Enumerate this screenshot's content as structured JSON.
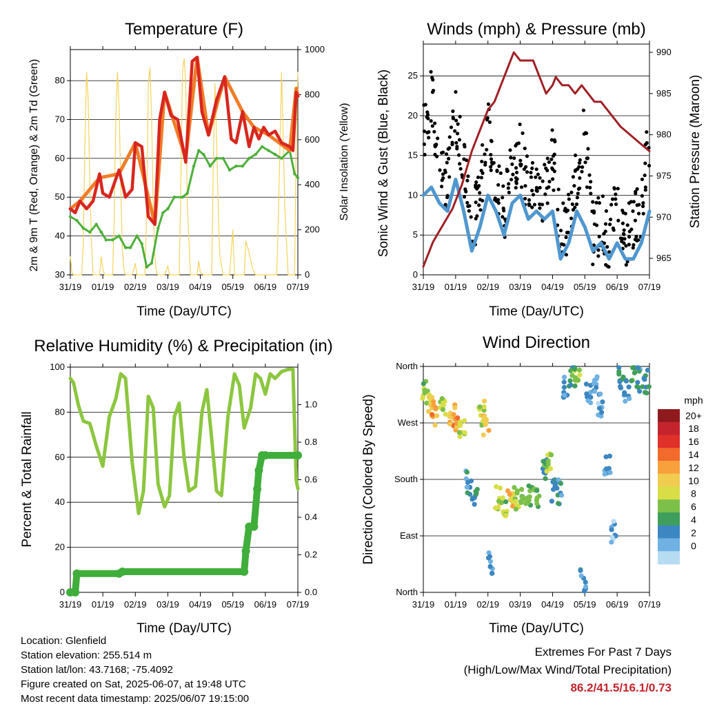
{
  "colors": {
    "temp_2m": "#d8261e",
    "temp_9m": "#f07d28",
    "dewpoint": "#4caf3a",
    "insolation": "#f6d35a",
    "wind": "#4f97d0",
    "gust": "#000000",
    "pressure": "#a01f24",
    "humidity": "#8cc63f",
    "precip": "#3fae3a",
    "extremes": "#c4242c"
  },
  "x_ticks": [
    "31/19",
    "01/19",
    "02/19",
    "03/19",
    "04/19",
    "05/19",
    "06/19",
    "07/19"
  ],
  "x_label": "Time (Day/UTC)",
  "panels": {
    "temperature": {
      "title": "Temperature (F)",
      "ylabel_left": "2m & 9m T (Red, Orange) & 2m Td (Green)",
      "ylabel_right": "Solar Insolation (Yellow)",
      "left_ticks": [
        "30",
        "40",
        "50",
        "60",
        "70",
        "80"
      ],
      "right_ticks": [
        "0",
        "200",
        "400",
        "600",
        "800",
        "1000"
      ]
    },
    "winds": {
      "title": "Winds (mph) & Pressure (mb)",
      "ylabel_left": "Sonic Wind & Gust (Blue, Black)",
      "ylabel_right": "Station Pressure (Maroon)",
      "left_ticks": [
        "0",
        "5",
        "10",
        "15",
        "20",
        "25"
      ],
      "right_ticks": [
        "965",
        "970",
        "975",
        "980",
        "985",
        "990"
      ]
    },
    "humidity": {
      "title": "Relative Humidity (%) & Precipitation (in)",
      "ylabel_left": "Percent & Total Rainfall",
      "left_ticks": [
        "0",
        "20",
        "40",
        "60",
        "80",
        "100"
      ],
      "right_ticks": [
        "0.0",
        "0.2",
        "0.4",
        "0.6",
        "0.8",
        "1.0"
      ]
    },
    "direction": {
      "title": "Wind Direction",
      "ylabel_left": "Direction (Colored By Speed)",
      "left_ticks": [
        "North",
        "East",
        "South",
        "West",
        "North"
      ],
      "legend_title": "mph",
      "legend_labels": [
        "20+",
        "18",
        "16",
        "14",
        "12",
        "10",
        "8",
        "6",
        "4",
        "2",
        "0"
      ],
      "legend_colors": [
        "#8f1a1e",
        "#c4242c",
        "#e0302a",
        "#f26a2c",
        "#f8a03c",
        "#f0cc50",
        "#d9de46",
        "#7cc04a",
        "#3f9e5c",
        "#3c86c2",
        "#6fb1e2",
        "#b6dcf2"
      ]
    }
  },
  "chart_data": [
    {
      "type": "line",
      "title": "Temperature (F)",
      "xlabel": "Time (Day/UTC)",
      "ylabel": "2m & 9m T (Red, Orange) & 2m Td (Green)",
      "y2label": "Solar Insolation (Yellow)",
      "xlim": [
        0,
        7
      ],
      "ylim": [
        30,
        88
      ],
      "y2lim": [
        0,
        1000
      ],
      "categories": [
        "31/19",
        "01/19",
        "02/19",
        "03/19",
        "04/19",
        "05/19",
        "06/19",
        "07/19"
      ],
      "series": [
        {
          "name": "2m T",
          "x": [
            0,
            0.15,
            0.3,
            0.5,
            0.7,
            0.9,
            1.0,
            1.2,
            1.5,
            1.7,
            1.9,
            2.0,
            2.2,
            2.4,
            2.6,
            2.75,
            2.9,
            3.1,
            3.3,
            3.55,
            3.75,
            3.9,
            4.05,
            4.25,
            4.5,
            4.75,
            4.95,
            5.1,
            5.3,
            5.5,
            5.65,
            5.8,
            5.95,
            6.1,
            6.3,
            6.5,
            6.75,
            6.85,
            6.95,
            7.0
          ],
          "y": [
            47,
            46,
            49,
            47,
            49,
            56,
            51,
            50,
            57,
            50,
            52,
            64,
            63,
            45,
            43,
            70,
            77,
            71,
            70,
            59,
            85,
            86,
            72,
            66,
            75,
            81,
            65,
            64,
            72,
            63,
            68,
            65,
            68,
            66,
            67,
            64,
            63,
            62,
            77,
            76
          ]
        },
        {
          "name": "9m T",
          "x": [
            0,
            0.3,
            0.9,
            1.5,
            2.0,
            2.6,
            2.9,
            3.55,
            3.9,
            4.25,
            4.75,
            5.3,
            5.65,
            6.1,
            6.75,
            6.95,
            7.0
          ],
          "y": [
            47,
            49,
            55,
            56,
            64,
            43,
            77,
            60,
            86,
            66,
            81,
            72,
            68,
            66,
            62,
            78,
            76
          ]
        },
        {
          "name": "2m Td",
          "x": [
            0,
            0.2,
            0.4,
            0.6,
            0.8,
            0.95,
            1.1,
            1.3,
            1.5,
            1.7,
            1.85,
            2.05,
            2.2,
            2.35,
            2.5,
            2.7,
            2.85,
            3.0,
            3.2,
            3.45,
            3.6,
            3.8,
            3.95,
            4.1,
            4.3,
            4.5,
            4.7,
            4.9,
            5.1,
            5.3,
            5.5,
            5.7,
            5.9,
            6.1,
            6.3,
            6.5,
            6.75,
            6.9,
            7.0
          ],
          "y": [
            45,
            44,
            42,
            41,
            43,
            41,
            39,
            39,
            40,
            37,
            37,
            40,
            38,
            32,
            33,
            42,
            46,
            47,
            50,
            50,
            51,
            58,
            62,
            61,
            58,
            60,
            60,
            57,
            58,
            58,
            60,
            61,
            63,
            62,
            61,
            60,
            62,
            56,
            55
          ]
        },
        {
          "name": "Solar Insolation",
          "axis": "y2",
          "x": [
            0.0,
            0.05,
            0.1,
            0.35,
            0.4,
            0.45,
            0.5,
            0.55,
            0.6,
            0.65,
            0.7,
            0.9,
            0.95,
            1.0,
            1.05,
            1.1,
            1.3,
            1.35,
            1.4,
            1.45,
            1.5,
            1.55,
            1.6,
            1.65,
            1.7,
            1.9,
            2.0,
            2.05,
            2.1,
            2.2,
            2.3,
            2.35,
            2.4,
            2.45,
            2.5,
            2.55,
            2.6,
            2.65,
            2.7,
            2.9,
            3.0,
            3.05,
            3.1,
            3.2,
            3.35,
            3.4,
            3.45,
            3.5,
            3.55,
            3.6,
            3.7,
            3.9,
            3.95,
            4.0,
            4.1,
            4.35,
            4.4,
            4.45,
            4.5,
            4.55,
            4.6,
            4.7,
            4.9,
            5.0,
            5.05,
            5.2,
            5.35,
            5.4,
            5.5,
            5.6,
            5.7,
            5.9,
            6.0,
            6.2,
            6.35,
            6.4,
            6.5,
            6.55,
            6.6,
            6.7,
            6.9,
            6.95,
            7.0
          ],
          "y": [
            80,
            10,
            0,
            0,
            150,
            600,
            900,
            780,
            400,
            150,
            0,
            0,
            80,
            30,
            0,
            0,
            0,
            250,
            700,
            900,
            750,
            400,
            120,
            20,
            0,
            0,
            50,
            0,
            0,
            0,
            0,
            300,
            850,
            920,
            700,
            300,
            80,
            10,
            0,
            0,
            40,
            0,
            0,
            0,
            0,
            400,
            900,
            960,
            850,
            300,
            0,
            0,
            60,
            10,
            0,
            0,
            500,
            850,
            600,
            300,
            80,
            0,
            0,
            200,
            0,
            0,
            0,
            150,
            100,
            30,
            0,
            0,
            0,
            0,
            0,
            250,
            900,
            600,
            300,
            0,
            0,
            600,
            900
          ]
        }
      ]
    },
    {
      "type": "scatter",
      "title": "Winds (mph) & Pressure (mb)",
      "xlabel": "Time (Day/UTC)",
      "ylabel": "Sonic Wind & Gust (Blue, Black)",
      "y2label": "Station Pressure (Maroon)",
      "xlim": [
        0,
        7
      ],
      "ylim": [
        0,
        29
      ],
      "y2lim": [
        963,
        991
      ],
      "categories": [
        "31/19",
        "01/19",
        "02/19",
        "03/19",
        "04/19",
        "05/19",
        "06/19",
        "07/19"
      ],
      "series": [
        {
          "name": "Sonic Wind",
          "x": [
            0.0,
            0.25,
            0.5,
            0.75,
            1.0,
            1.25,
            1.5,
            1.75,
            2.0,
            2.25,
            2.5,
            2.75,
            3.0,
            3.25,
            3.5,
            3.75,
            4.0,
            4.25,
            4.5,
            4.75,
            5.0,
            5.25,
            5.5,
            5.75,
            6.0,
            6.25,
            6.5,
            6.75,
            7.0
          ],
          "y": [
            10,
            11,
            9,
            8,
            12,
            8,
            3,
            6,
            10,
            8,
            5,
            9,
            10,
            7,
            8,
            7,
            8,
            2,
            4,
            8,
            6,
            3,
            4,
            2,
            4,
            2,
            2,
            4,
            8
          ]
        },
        {
          "name": "Gust",
          "x": [
            0.0,
            0.25,
            0.5,
            0.75,
            1.0,
            1.25,
            1.5,
            1.75,
            2.0,
            2.25,
            2.5,
            2.75,
            3.0,
            3.25,
            3.5,
            3.75,
            4.0,
            4.25,
            4.5,
            4.75,
            5.0,
            5.25,
            5.5,
            5.75,
            6.0,
            6.25,
            6.5,
            6.75,
            7.0
          ],
          "y": [
            18,
            22,
            14,
            11,
            21,
            14,
            5,
            10,
            20,
            12,
            7,
            14,
            16,
            10,
            11,
            10,
            16,
            5,
            7,
            12,
            18,
            5,
            7,
            4,
            9,
            5,
            6,
            8,
            18
          ]
        },
        {
          "name": "Station Pressure",
          "axis": "y2",
          "x": [
            0.0,
            0.3,
            0.6,
            0.9,
            1.2,
            1.5,
            1.8,
            2.0,
            2.2,
            2.4,
            2.6,
            2.8,
            3.0,
            3.2,
            3.4,
            3.6,
            3.8,
            4.0,
            4.1,
            4.3,
            4.5,
            4.7,
            4.9,
            5.1,
            5.3,
            5.5,
            5.7,
            5.9,
            6.1,
            6.4,
            6.7,
            7.0
          ],
          "y": [
            964,
            967,
            969,
            971,
            974,
            978,
            981,
            983,
            984,
            986,
            988,
            990,
            989,
            989,
            989,
            987,
            985,
            986,
            987,
            986,
            986,
            985,
            986,
            985,
            984,
            984,
            983,
            982,
            981,
            980,
            979,
            978
          ]
        }
      ]
    },
    {
      "type": "line",
      "title": "Relative Humidity (%) & Precipitation (in)",
      "xlabel": "Time (Day/UTC)",
      "ylabel": "Percent & Total Rainfall",
      "xlim": [
        0,
        7
      ],
      "ylim": [
        0,
        100
      ],
      "y2lim": [
        0,
        1.2
      ],
      "categories": [
        "31/19",
        "01/19",
        "02/19",
        "03/19",
        "04/19",
        "05/19",
        "06/19",
        "07/19"
      ],
      "series": [
        {
          "name": "Relative Humidity",
          "x": [
            0.0,
            0.1,
            0.25,
            0.4,
            0.6,
            0.8,
            1.0,
            1.2,
            1.4,
            1.55,
            1.7,
            1.9,
            2.1,
            2.25,
            2.4,
            2.55,
            2.7,
            2.9,
            3.05,
            3.2,
            3.35,
            3.5,
            3.65,
            3.85,
            4.05,
            4.2,
            4.35,
            4.5,
            4.65,
            4.85,
            5.05,
            5.2,
            5.35,
            5.55,
            5.7,
            5.85,
            6.0,
            6.15,
            6.3,
            6.5,
            6.7,
            6.85,
            6.95,
            7.0
          ],
          "y": [
            95,
            93,
            83,
            76,
            75,
            65,
            56,
            78,
            86,
            97,
            95,
            58,
            35,
            45,
            87,
            82,
            48,
            38,
            43,
            78,
            84,
            60,
            45,
            47,
            80,
            90,
            68,
            45,
            43,
            78,
            97,
            92,
            73,
            82,
            97,
            95,
            88,
            97,
            95,
            98,
            99,
            99,
            50,
            46
          ]
        },
        {
          "name": "Total Rainfall",
          "axis": "y2",
          "x": [
            0.0,
            0.15,
            0.2,
            1.5,
            1.6,
            5.35,
            5.4,
            5.5,
            5.65,
            5.75,
            5.8,
            5.9,
            6.0,
            7.0
          ],
          "y": [
            0.0,
            0.0,
            0.1,
            0.1,
            0.11,
            0.11,
            0.22,
            0.35,
            0.35,
            0.55,
            0.65,
            0.73,
            0.73,
            0.73
          ]
        }
      ]
    },
    {
      "type": "scatter",
      "title": "Wind Direction",
      "xlabel": "Time (Day/UTC)",
      "ylabel": "Direction (Colored By Speed)",
      "xlim": [
        0,
        7
      ],
      "ylim": [
        0,
        360
      ],
      "categories": [
        "31/19",
        "01/19",
        "02/19",
        "03/19",
        "04/19",
        "05/19",
        "06/19",
        "07/19"
      ],
      "series": [
        {
          "name": "Wind Direction",
          "x": [
            0.05,
            0.2,
            0.35,
            0.6,
            0.9,
            1.0,
            1.2,
            1.4,
            1.6,
            1.8,
            1.95,
            2.1,
            2.3,
            2.5,
            2.7,
            2.9,
            3.1,
            3.3,
            3.5,
            3.75,
            3.9,
            4.05,
            4.2,
            4.4,
            4.6,
            4.75,
            4.95,
            5.1,
            5.3,
            5.5,
            5.7,
            5.9,
            6.1,
            6.3,
            6.5,
            6.7,
            6.9
          ],
          "y": [
            320,
            300,
            285,
            300,
            285,
            270,
            265,
            175,
            160,
            285,
            270,
            50,
            150,
            140,
            145,
            150,
            145,
            150,
            150,
            195,
            205,
            165,
            160,
            330,
            345,
            340,
            20,
            320,
            330,
            300,
            200,
            100,
            340,
            320,
            345,
            340,
            335
          ],
          "speed": [
            8,
            11,
            14,
            9,
            12,
            14,
            9,
            4,
            5,
            10,
            13,
            2,
            10,
            8,
            12,
            9,
            7,
            8,
            7,
            6,
            9,
            5,
            4,
            3,
            6,
            8,
            4,
            3,
            2,
            2,
            3,
            2,
            5,
            4,
            6,
            4,
            5
          ]
        }
      ]
    }
  ],
  "footer": {
    "location": "Location: Glenfield",
    "elevation": "Station elevation: 255.514 m",
    "latlon": "Station lat/lon: 43.7168; -75.4092",
    "created": "Figure created on Sat, 2025-06-07, at 19:48 UTC",
    "recent": "Most recent data timestamp: 2025/06/07 19:15:00",
    "extremes_title": "Extremes For Past 7 Days",
    "extremes_sub": "(High/Low/Max Wind/Total Precipitation)",
    "extremes_values": "86.2/41.5/16.1/0.73"
  }
}
